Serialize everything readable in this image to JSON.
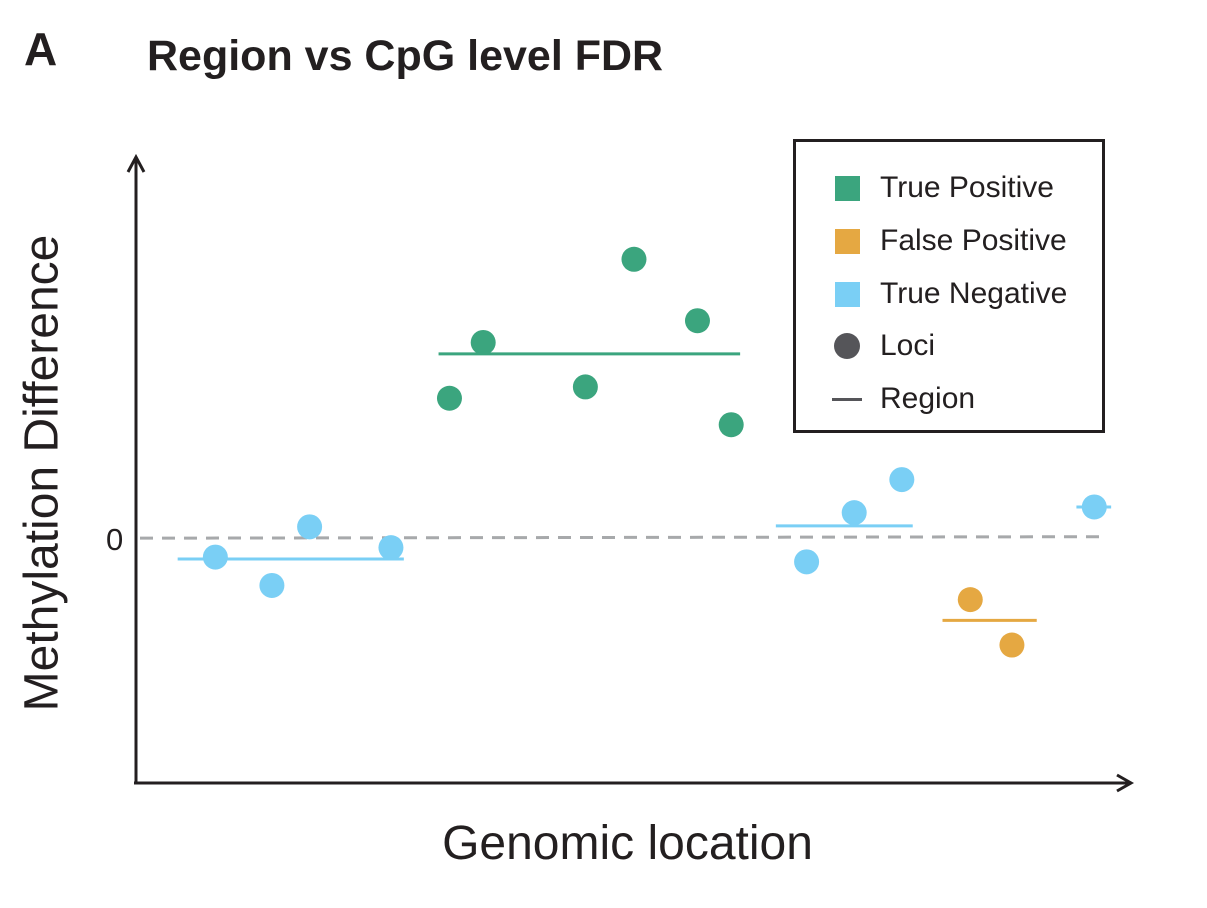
{
  "panel_letter": "A",
  "chart_data": {
    "type": "scatter",
    "title": "Region vs CpG level FDR",
    "xlabel": "Genomic location",
    "ylabel": "Methylation Difference",
    "y_tick_labels": [
      "0"
    ],
    "ylim": [
      -2.6,
      4.0
    ],
    "xlim": [
      0,
      100
    ],
    "zero_line": "dashed",
    "legend": {
      "placement": "top-right",
      "entries": [
        {
          "label": "True Positive",
          "symbol": "square",
          "color": "#3ba57e"
        },
        {
          "label": "False Positive",
          "symbol": "square",
          "color": "#e5a842"
        },
        {
          "label": "True Negative",
          "symbol": "square",
          "color": "#7acff5"
        },
        {
          "label": "Loci",
          "symbol": "circle",
          "color": "#555559"
        },
        {
          "label": "Region",
          "symbol": "line",
          "color": "#555559"
        }
      ]
    },
    "series": [
      {
        "category": "True Negative",
        "color": "#7acff5",
        "points": [
          {
            "x": 8,
            "y": -0.2
          },
          {
            "x": 13.7,
            "y": -0.5
          },
          {
            "x": 17.5,
            "y": 0.12
          },
          {
            "x": 25.7,
            "y": -0.1
          }
        ],
        "region": {
          "x_start": 4.2,
          "x_end": 27,
          "y": -0.22
        }
      },
      {
        "category": "True Positive",
        "color": "#3ba57e",
        "points": [
          {
            "x": 31.6,
            "y": 1.48
          },
          {
            "x": 35,
            "y": 2.07
          },
          {
            "x": 45.3,
            "y": 1.6
          },
          {
            "x": 50.2,
            "y": 2.95
          },
          {
            "x": 56.6,
            "y": 2.3
          },
          {
            "x": 60,
            "y": 1.2
          }
        ],
        "region": {
          "x_start": 30.5,
          "x_end": 60.9,
          "y": 1.95
        }
      },
      {
        "category": "True Negative",
        "color": "#7acff5",
        "points": [
          {
            "x": 67.6,
            "y": -0.25
          },
          {
            "x": 72.4,
            "y": 0.27
          },
          {
            "x": 77.2,
            "y": 0.62
          }
        ],
        "region": {
          "x_start": 64.5,
          "x_end": 78.3,
          "y": 0.13
        }
      },
      {
        "category": "False Positive",
        "color": "#e5a842",
        "points": [
          {
            "x": 84.1,
            "y": -0.65
          },
          {
            "x": 88.3,
            "y": -1.13
          }
        ],
        "region": {
          "x_start": 81.3,
          "x_end": 90.8,
          "y": -0.87
        }
      },
      {
        "category": "True Negative",
        "color": "#7acff5",
        "points": [
          {
            "x": 96.6,
            "y": 0.33
          }
        ],
        "region": {
          "x_start": 94.8,
          "x_end": 98.3,
          "y": 0.33
        }
      }
    ]
  }
}
